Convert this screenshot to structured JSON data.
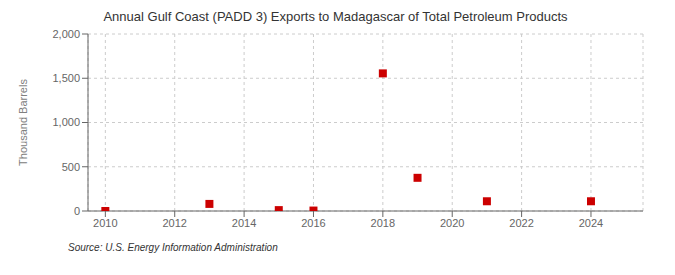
{
  "chart_data": {
    "type": "scatter",
    "title": "Annual Gulf Coast (PADD 3) Exports to Madagascar of Total Petroleum Products",
    "ylabel": "Thousand Barrels",
    "annotations": [
      "Source: U.S. Energy Information Administration"
    ],
    "x": [
      2010,
      2013,
      2015,
      2016,
      2018,
      2019,
      2021,
      2024
    ],
    "values": [
      0,
      80,
      10,
      5,
      1555,
      375,
      110,
      110
    ],
    "color": "#cc0000",
    "marker": "square",
    "xlim": [
      2009.5,
      2025.5
    ],
    "xticks": [
      2010,
      2012,
      2014,
      2016,
      2018,
      2020,
      2022,
      2024
    ],
    "ylim": [
      0,
      2000
    ],
    "yticks": [
      0,
      500,
      {
        "value": 1000,
        "label": "1,000"
      },
      {
        "value": 1500,
        "label": "1,500"
      },
      {
        "value": 2000,
        "label": "2,000"
      }
    ],
    "grid": true
  }
}
